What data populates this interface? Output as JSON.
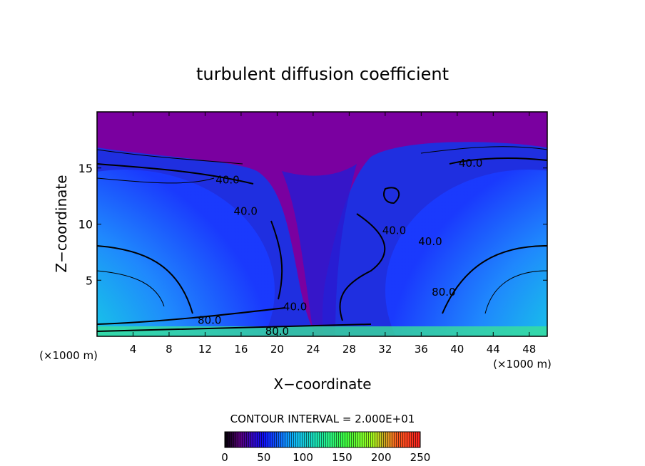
{
  "chart_data": {
    "type": "heatmap",
    "title": "turbulent diffusion coefficient",
    "xlabel": "X−coordinate",
    "ylabel": "Z−coordinate",
    "x_unit_left": "(×1000 m)",
    "x_unit_right": "(×1000 m)",
    "xlim": [
      0,
      50
    ],
    "ylim": [
      0,
      20
    ],
    "x_ticks": [
      4,
      8,
      12,
      16,
      20,
      24,
      28,
      32,
      36,
      40,
      44,
      48
    ],
    "y_ticks": [
      5,
      10,
      15
    ],
    "contour_interval_text": "CONTOUR INTERVAL = 2.000E+01",
    "colorbar": {
      "min": 0,
      "max": 250,
      "ticks": [
        0,
        50,
        100,
        150,
        200,
        250
      ]
    },
    "contour_labels": [
      {
        "text": "40.0",
        "x": 14.5,
        "z": 14.0
      },
      {
        "text": "40.0",
        "x": 16.5,
        "z": 11.2
      },
      {
        "text": "40.0",
        "x": 33.0,
        "z": 9.5
      },
      {
        "text": "40.0",
        "x": 37.0,
        "z": 8.5
      },
      {
        "text": "40.0",
        "x": 41.5,
        "z": 15.5
      },
      {
        "text": "40.0",
        "x": 22.0,
        "z": 2.7
      },
      {
        "text": "80.0",
        "x": 12.5,
        "z": 1.5
      },
      {
        "text": "80.0",
        "x": 20.0,
        "z": 0.5
      },
      {
        "text": "80.0",
        "x": 38.5,
        "z": 4.0
      }
    ]
  },
  "colors": {
    "background_top": "#7a00a0",
    "deep_blue": "#1a1aff",
    "cyan": "#18c6ea",
    "green": "#3ae09a",
    "bright_green": "#40f060"
  }
}
